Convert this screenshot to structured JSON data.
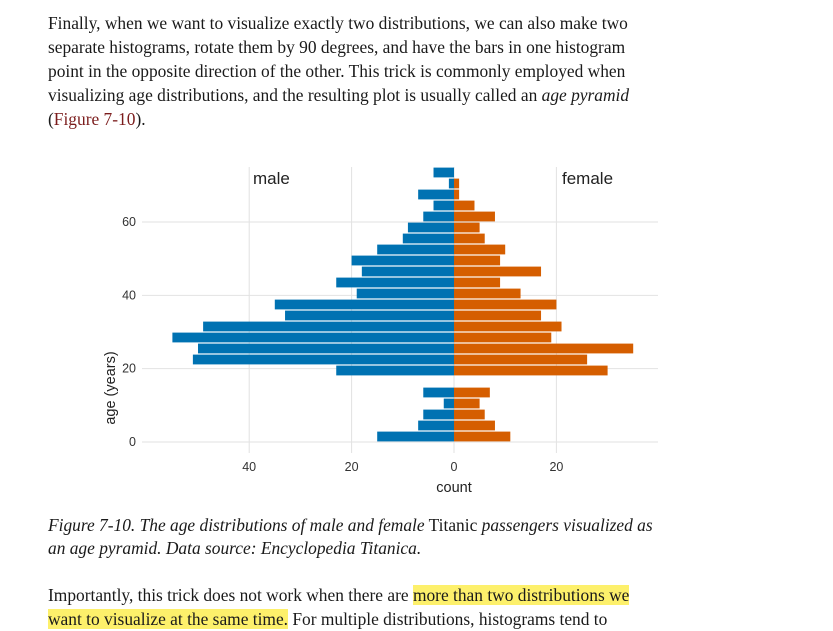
{
  "paragraph1": {
    "line1": "Finally, when we want to visualize exactly two distributions, we can also make two",
    "line2": "separate histograms, rotate them by 90 degrees, and have the bars in one histogram",
    "line3": "point in the opposite direction of the other. This trick is commonly employed when",
    "line4_start": "visualizing age distributions, and the resulting plot is usually called an ",
    "line4_term": "age pyramid",
    "line5_paren_open": "(",
    "figure_ref": "Figure 7-10",
    "line5_paren_close": ")."
  },
  "caption": {
    "part1": "Figure 7-10. The age distributions of male and female",
    "part2": " Titanic ",
    "part3": "passengers visualized as",
    "line2": "an age pyramid. Data source: Encyclopedia Titanica."
  },
  "paragraph2": {
    "line1_start": "Importantly, this trick does not work when there are ",
    "line1_highlight": "more than two distributions we",
    "line2_highlight": "want to visualize at the same time.",
    "line2_end": " For multiple distributions, histograms tend to"
  },
  "chart_data": {
    "type": "bar",
    "orientation": "horizontal",
    "xlabel": "count",
    "ylabel": "age (years)",
    "bin_width_years": 3,
    "age_bins_start": [
      0,
      3,
      6,
      9,
      12,
      15,
      18,
      21,
      24,
      27,
      30,
      33,
      36,
      39,
      42,
      45,
      48,
      51,
      54,
      57,
      60,
      63,
      66,
      69,
      72
    ],
    "series": [
      {
        "name": "male",
        "color": "#0072b2",
        "values": [
          15,
          7,
          6,
          2,
          6,
          0,
          23,
          51,
          50,
          55,
          49,
          33,
          35,
          19,
          23,
          18,
          20,
          15,
          10,
          9,
          6,
          4,
          7,
          1,
          4
        ]
      },
      {
        "name": "female",
        "color": "#d55e00",
        "values": [
          11,
          8,
          6,
          5,
          7,
          0,
          30,
          26,
          35,
          19,
          21,
          17,
          20,
          13,
          9,
          17,
          9,
          10,
          6,
          5,
          8,
          4,
          1,
          1,
          0
        ]
      }
    ],
    "x_ticks_male": [
      "40",
      "20"
    ],
    "x_ticks_shared": [
      "0"
    ],
    "x_ticks_female": [
      "20"
    ],
    "y_ticks": [
      "0",
      "20",
      "40",
      "60"
    ],
    "male_xlim": [
      60,
      0
    ],
    "female_xlim": [
      0,
      40
    ],
    "ylim": [
      -3,
      75
    ],
    "grid": true
  }
}
